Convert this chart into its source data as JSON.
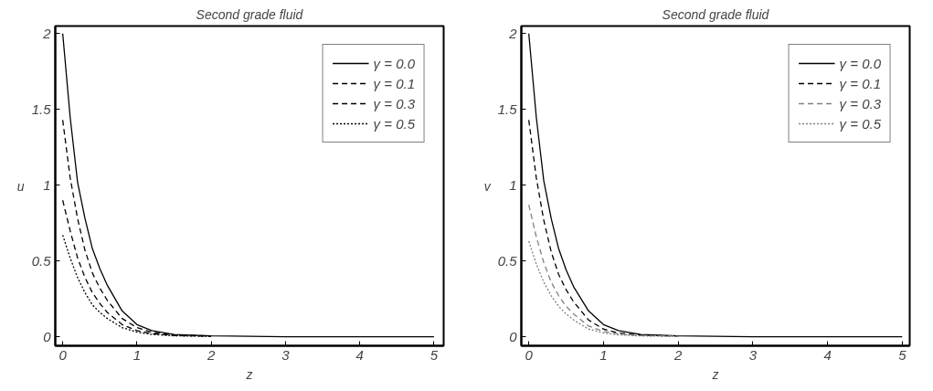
{
  "chart_data": [
    {
      "type": "line",
      "title": "Second grade fluid",
      "xlabel": "z",
      "ylabel": "u",
      "xlim": [
        -0.1,
        5.13
      ],
      "ylim": [
        -0.06,
        2.05
      ],
      "xticks": [
        0,
        1,
        2,
        3,
        4,
        5
      ],
      "yticks": [
        0,
        0.5,
        1,
        1.5,
        2
      ],
      "grid": false,
      "legend": "top right",
      "marker": "none",
      "series": [
        {
          "name": "γ = 0.0",
          "color": "#000000",
          "line_style": "solid",
          "x": [
            0,
            0.1,
            0.2,
            0.3,
            0.4,
            0.5,
            0.6,
            0.8,
            1.0,
            1.2,
            1.5,
            2,
            3,
            4,
            5
          ],
          "values": [
            2.0,
            1.45,
            1.02,
            0.78,
            0.58,
            0.45,
            0.34,
            0.17,
            0.08,
            0.04,
            0.015,
            0.005,
            0,
            0,
            0
          ]
        },
        {
          "name": "γ = 0.1",
          "color": "#000000",
          "line_style": "dashed",
          "x": [
            0,
            0.1,
            0.2,
            0.3,
            0.4,
            0.5,
            0.6,
            0.8,
            1.0,
            1.2,
            1.5,
            2
          ],
          "values": [
            1.43,
            1.05,
            0.78,
            0.57,
            0.42,
            0.32,
            0.24,
            0.12,
            0.06,
            0.03,
            0.01,
            0.005
          ]
        },
        {
          "name": "γ = 0.3",
          "color": "#000000",
          "line_style": "dashed",
          "x": [
            0,
            0.1,
            0.2,
            0.3,
            0.4,
            0.5,
            0.6,
            0.8,
            1.0,
            1.2,
            1.5,
            2
          ],
          "values": [
            0.9,
            0.7,
            0.52,
            0.39,
            0.29,
            0.22,
            0.16,
            0.08,
            0.04,
            0.02,
            0.008,
            0.003
          ]
        },
        {
          "name": "γ = 0.5",
          "color": "#000000",
          "line_style": "dotted",
          "x": [
            0,
            0.1,
            0.2,
            0.3,
            0.4,
            0.5,
            0.6,
            0.8,
            1.0,
            1.2,
            1.5,
            2
          ],
          "values": [
            0.67,
            0.52,
            0.39,
            0.29,
            0.21,
            0.16,
            0.12,
            0.06,
            0.03,
            0.015,
            0.006,
            0.002
          ]
        }
      ]
    },
    {
      "type": "line",
      "title": "Second grade fluid",
      "xlabel": "z",
      "ylabel": "v",
      "xlim": [
        -0.1,
        5.1
      ],
      "ylim": [
        -0.06,
        2.05
      ],
      "xticks": [
        0,
        1,
        2,
        3,
        4,
        5
      ],
      "yticks": [
        0,
        0.5,
        1,
        1.5,
        2
      ],
      "grid": false,
      "legend": "top right",
      "marker": "none",
      "series": [
        {
          "name": "γ = 0.0",
          "color": "#000000",
          "line_style": "solid",
          "x": [
            0,
            0.1,
            0.2,
            0.3,
            0.4,
            0.5,
            0.6,
            0.8,
            1.0,
            1.2,
            1.5,
            2,
            3,
            4,
            5
          ],
          "values": [
            2.0,
            1.45,
            1.03,
            0.78,
            0.58,
            0.44,
            0.33,
            0.17,
            0.08,
            0.04,
            0.015,
            0.005,
            0,
            0,
            0
          ]
        },
        {
          "name": "γ = 0.1",
          "color": "#000000",
          "line_style": "dashed",
          "x": [
            0,
            0.1,
            0.2,
            0.3,
            0.4,
            0.5,
            0.6,
            0.8,
            1.0,
            1.2,
            1.5,
            2
          ],
          "values": [
            1.43,
            1.05,
            0.77,
            0.56,
            0.41,
            0.31,
            0.23,
            0.11,
            0.05,
            0.025,
            0.01,
            0.004
          ]
        },
        {
          "name": "γ = 0.3",
          "color": "#808080",
          "line_style": "dashed",
          "x": [
            0,
            0.1,
            0.2,
            0.3,
            0.4,
            0.5,
            0.6,
            0.8,
            1.0,
            1.2,
            1.5,
            2
          ],
          "values": [
            0.87,
            0.66,
            0.49,
            0.36,
            0.27,
            0.2,
            0.15,
            0.07,
            0.035,
            0.018,
            0.007,
            0.003
          ]
        },
        {
          "name": "γ = 0.5",
          "color": "#808080",
          "line_style": "dotted",
          "x": [
            0,
            0.1,
            0.2,
            0.3,
            0.4,
            0.5,
            0.6,
            0.8,
            1.0,
            1.2,
            1.5,
            2
          ],
          "values": [
            0.63,
            0.48,
            0.36,
            0.27,
            0.2,
            0.15,
            0.11,
            0.05,
            0.025,
            0.012,
            0.005,
            0.002
          ]
        }
      ]
    }
  ]
}
